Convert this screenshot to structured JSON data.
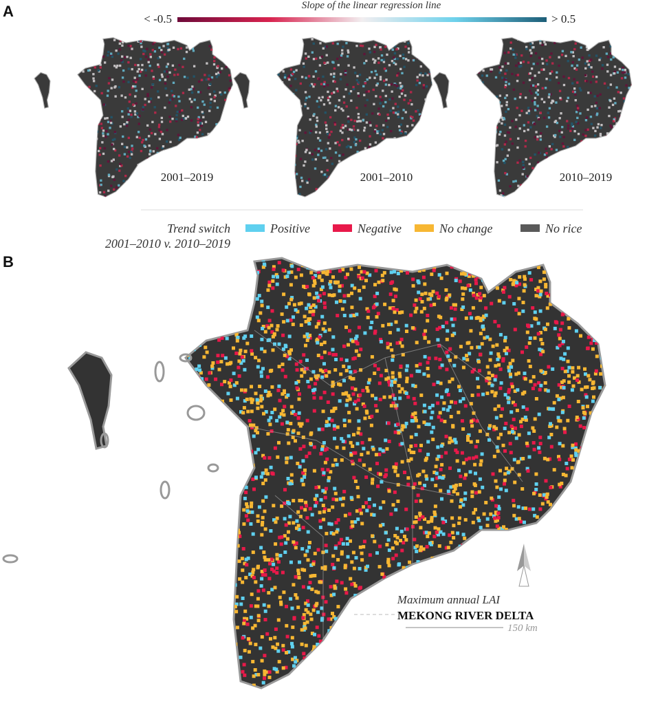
{
  "panel_a": {
    "label": "A",
    "colorbar": {
      "title": "Slope of the linear regression line",
      "min_label": "< -0.5",
      "max_label": "> 0.5",
      "colors": [
        "#6e0a3a",
        "#d8234f",
        "#f2eef0",
        "#6fd2ec",
        "#1d5e78"
      ]
    },
    "maps": [
      {
        "period": "2001–2019"
      },
      {
        "period": "2001–2010"
      },
      {
        "period": "2010–2019"
      }
    ]
  },
  "legend": {
    "title_lines": [
      "Trend switch",
      "2001–2010 v. 2010–2019"
    ],
    "items": [
      {
        "name": "Positive",
        "color": "#5fd0ef"
      },
      {
        "name": "Negative",
        "color": "#e8194a"
      },
      {
        "name": "No change",
        "color": "#f7b733"
      },
      {
        "name": "No rice",
        "color": "#5a5a5a"
      }
    ]
  },
  "panel_b": {
    "label": "B",
    "subtitle": "Maximum annual LAI",
    "title": "MEKONG RIVER DELTA",
    "scale_label": "150 km"
  }
}
